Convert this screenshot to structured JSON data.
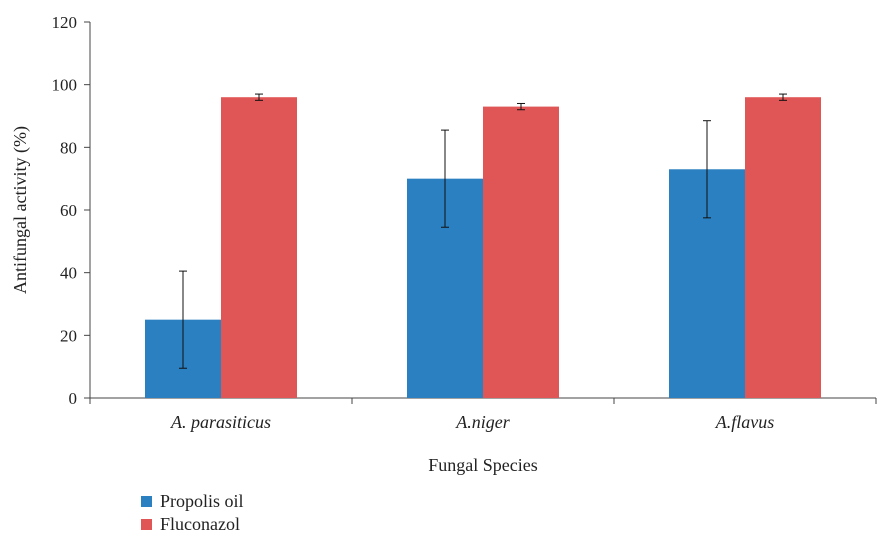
{
  "chart_data": {
    "type": "bar",
    "categories": [
      "A. parasiticus",
      "A.niger",
      "A.flavus"
    ],
    "series": [
      {
        "name": "Propolis oil",
        "color": "#2b80c1",
        "values": [
          25,
          70,
          73
        ],
        "errors": [
          15.5,
          15.5,
          15.5
        ]
      },
      {
        "name": "Fluconazol",
        "color": "#e05656",
        "values": [
          96,
          93,
          96
        ],
        "errors": [
          1,
          1,
          1
        ]
      }
    ],
    "xlabel": "Fungal Species",
    "ylabel": "Antifungal activity (%)",
    "ylim": [
      0,
      120
    ],
    "yticks": [
      0,
      20,
      40,
      60,
      80,
      100,
      120
    ],
    "grid": false,
    "legend": "bottom-left"
  }
}
